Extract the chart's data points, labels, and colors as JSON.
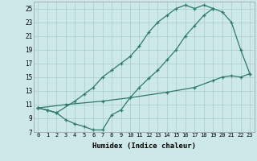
{
  "xlabel": "Humidex (Indice chaleur)",
  "bg_color": "#cce8e8",
  "line_color": "#2d7a6a",
  "grid_color": "#aacccc",
  "xlim": [
    -0.5,
    23.5
  ],
  "ylim": [
    7,
    26
  ],
  "yticks": [
    7,
    9,
    11,
    13,
    15,
    17,
    19,
    21,
    23,
    25
  ],
  "xticks": [
    0,
    1,
    2,
    3,
    4,
    5,
    6,
    7,
    8,
    9,
    10,
    11,
    12,
    13,
    14,
    15,
    16,
    17,
    18,
    19,
    20,
    21,
    22,
    23
  ],
  "line1_x": [
    0,
    1,
    2,
    3,
    4,
    5,
    6,
    7,
    8,
    9,
    10,
    11,
    12,
    13,
    14,
    15,
    16,
    17,
    18,
    19
  ],
  "line1_y": [
    10.5,
    10.2,
    9.8,
    8.8,
    8.2,
    7.8,
    7.3,
    7.3,
    9.5,
    10.2,
    12.0,
    13.5,
    14.8,
    16.0,
    17.5,
    19.0,
    21.0,
    22.5,
    24.0,
    25.0
  ],
  "line2_x": [
    0,
    1,
    2,
    4,
    5,
    6,
    7,
    8,
    9,
    10,
    11,
    12,
    13,
    14,
    15,
    16,
    17,
    18,
    19,
    20,
    21,
    22,
    23
  ],
  "line2_y": [
    10.5,
    10.2,
    9.8,
    11.5,
    12.5,
    13.5,
    15.0,
    16.0,
    17.0,
    18.0,
    19.5,
    21.5,
    23.0,
    24.0,
    25.0,
    25.5,
    25.0,
    25.5,
    25.0,
    24.5,
    23.0,
    19.0,
    15.5
  ],
  "line3_x": [
    0,
    3,
    7,
    10,
    14,
    17,
    19,
    20,
    21,
    22,
    23
  ],
  "line3_y": [
    10.5,
    11.0,
    11.5,
    12.0,
    12.8,
    13.5,
    14.5,
    15.0,
    15.2,
    15.0,
    15.5
  ]
}
